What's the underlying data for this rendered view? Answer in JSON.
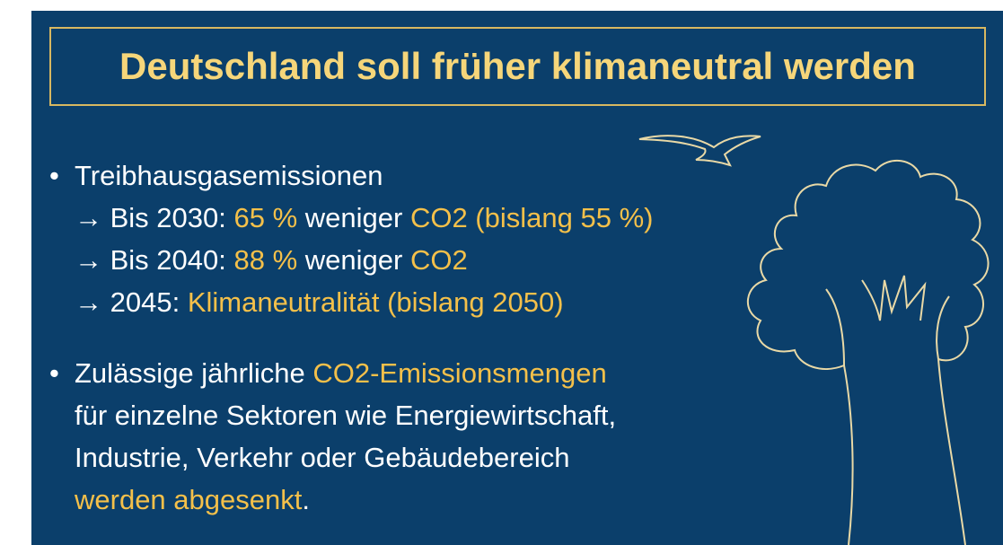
{
  "title": "Deutschland soll früher klimaneutral werden",
  "bullets": [
    {
      "marker": "•",
      "lines": [
        [
          {
            "text": "Treibhausgasemissionen",
            "accent": false
          }
        ],
        [
          {
            "text": "→ Bis 2030: ",
            "accent": false
          },
          {
            "text": "65 %",
            "accent": true
          },
          {
            "text": " weniger ",
            "accent": false
          },
          {
            "text": "CO2 (bislang 55 %)",
            "accent": true
          }
        ],
        [
          {
            "text": "→ Bis 2040: ",
            "accent": false
          },
          {
            "text": "88 %",
            "accent": true
          },
          {
            "text": " weniger ",
            "accent": false
          },
          {
            "text": "CO2",
            "accent": true
          }
        ],
        [
          {
            "text": "→ 2045: ",
            "accent": false
          },
          {
            "text": "Klimaneutralität (bislang 2050)",
            "accent": true
          }
        ]
      ]
    },
    {
      "marker": "•",
      "lines": [
        [
          {
            "text": "Zulässige jährliche ",
            "accent": false
          },
          {
            "text": "CO2-Emissionsmengen",
            "accent": true
          }
        ],
        [
          {
            "text": "für einzelne Sektoren wie Energiewirtschaft,",
            "accent": false
          }
        ],
        [
          {
            "text": "Industrie, Verkehr oder Gebäudebereich",
            "accent": false
          }
        ],
        [
          {
            "text": "werden abgesenkt",
            "accent": true
          },
          {
            "text": ".",
            "accent": false
          }
        ]
      ]
    }
  ],
  "colors": {
    "background": "#0b3f6b",
    "text": "#ffffff",
    "accent": "#f4c04a",
    "title": "#f6d67a"
  }
}
